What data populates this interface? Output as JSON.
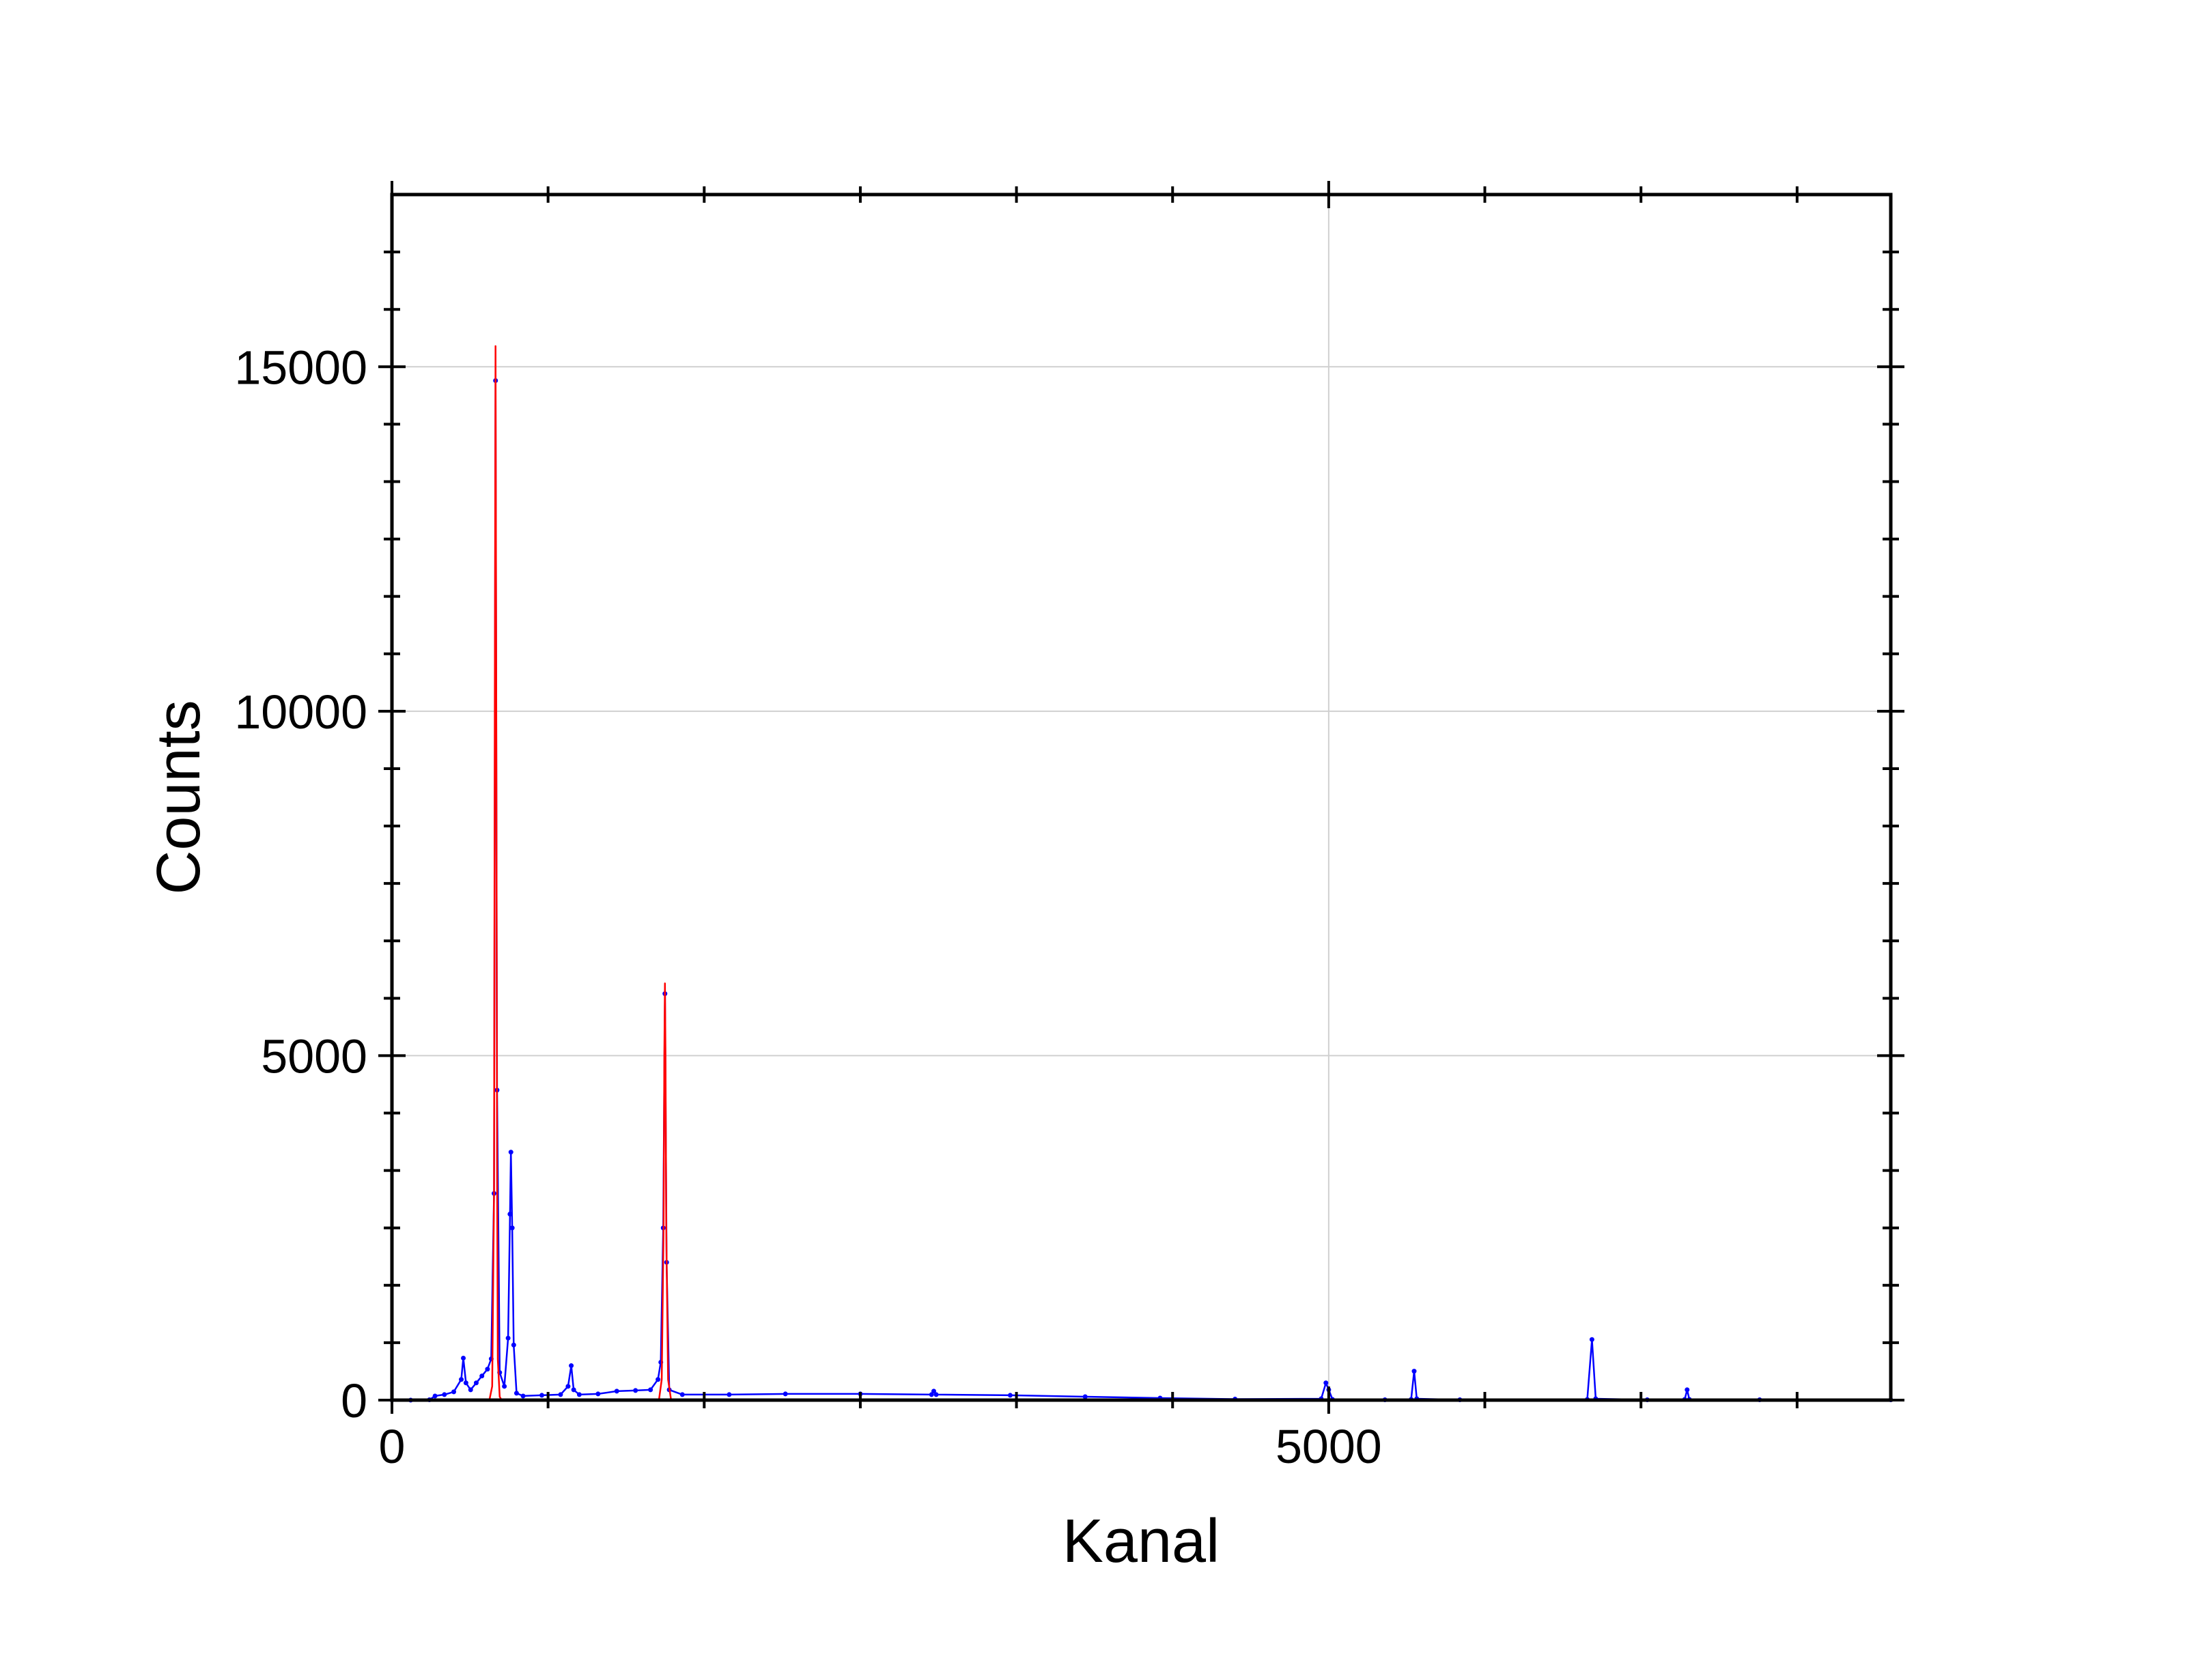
{
  "chart_data": {
    "type": "line",
    "x_label": "Kanal",
    "y_label": "Counts",
    "xlim": [
      0,
      8000
    ],
    "ylim": [
      0,
      17500
    ],
    "xticks": [
      0,
      5000
    ],
    "yticks": [
      0,
      5000,
      10000,
      15000
    ],
    "xminorticks": [
      833.3,
      1666.7,
      2500,
      3333.3,
      4166.7,
      5833.3,
      6666.7,
      7500
    ],
    "yminorticks": [
      833.3,
      1666.7,
      2500,
      3333.3,
      4166.7,
      5833.3,
      6666.7,
      7500,
      8333.3,
      9166.7,
      10833.3,
      11666.7,
      12500,
      13333.3,
      14166.7,
      15833.3,
      16666.7
    ],
    "grid": true,
    "series": [
      {
        "color": "#0000ff",
        "style": "line+markers",
        "x": [
          0,
          100,
          200,
          230,
          280,
          330,
          370,
          381,
          395,
          420,
          450,
          480,
          510,
          530,
          545,
          553,
          561,
          575,
          600,
          620,
          630,
          635,
          642,
          650,
          665,
          700,
          800,
          900,
          940,
          957,
          970,
          1000,
          1100,
          1200,
          1300,
          1380,
          1420,
          1435,
          1448,
          1457,
          1466,
          1480,
          1550,
          1800,
          2100,
          2500,
          2880,
          2892,
          2905,
          3300,
          3700,
          4100,
          4500,
          4960,
          4985,
          5000,
          5020,
          5300,
          5440,
          5456,
          5470,
          5700,
          6380,
          6405,
          6425,
          6700,
          6900,
          6913,
          6925,
          7300,
          8000
        ],
        "values": [
          0,
          0,
          5,
          60,
          80,
          120,
          300,
          610,
          250,
          150,
          250,
          350,
          450,
          600,
          3000,
          14800,
          4500,
          400,
          200,
          900,
          2700,
          3600,
          2500,
          800,
          100,
          60,
          70,
          80,
          200,
          500,
          150,
          80,
          90,
          130,
          140,
          150,
          300,
          550,
          2500,
          5900,
          2000,
          150,
          80,
          80,
          90,
          90,
          80,
          130,
          80,
          70,
          50,
          30,
          15,
          20,
          250,
          150,
          10,
          5,
          10,
          420,
          20,
          5,
          10,
          880,
          20,
          5,
          10,
          150,
          10,
          5,
          5
        ]
      },
      {
        "color": "#ff0000",
        "style": "line",
        "x": [
          520,
          535,
          545,
          549,
          553,
          557,
          561,
          565,
          575,
          585,
          null,
          1425,
          1440,
          1450,
          1454,
          1457,
          1460,
          1464,
          1474,
          1490
        ],
        "values": [
          0,
          200,
          3000,
          10000,
          15300,
          10000,
          3500,
          600,
          50,
          0,
          null,
          0,
          300,
          2500,
          5000,
          6050,
          5000,
          2500,
          300,
          0
        ]
      }
    ]
  }
}
